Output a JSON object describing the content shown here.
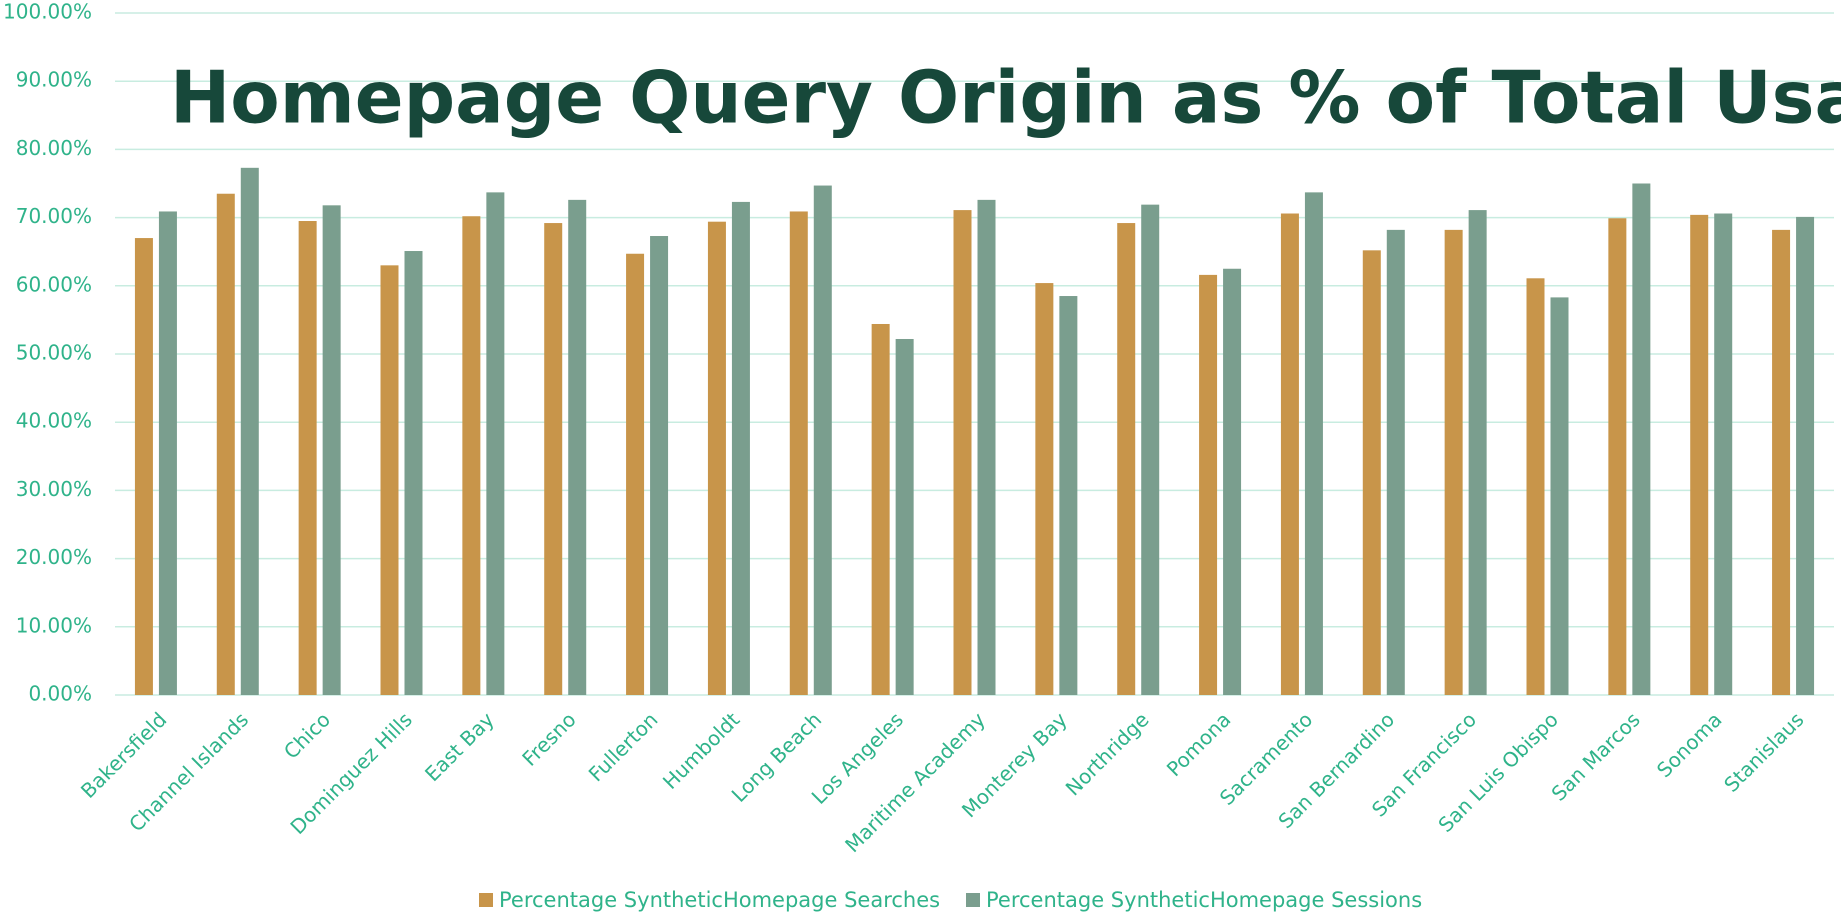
{
  "chart_data": {
    "type": "bar",
    "title": "Homepage Query Origin as % of Total Usage",
    "categories": [
      "Bakersfield",
      "Channel Islands",
      "Chico",
      "Dominguez Hills",
      "East Bay",
      "Fresno",
      "Fullerton",
      "Humboldt",
      "Long Beach",
      "Los Angeles",
      "Maritime Academy",
      "Monterey Bay",
      "Northridge",
      "Pomona",
      "Sacramento",
      "San Bernardino",
      "San Francisco",
      "San Luis Obispo",
      "San Marcos",
      "Sonoma",
      "Stanislaus"
    ],
    "series": [
      {
        "name": "Percentage SyntheticHomepage Searches",
        "color": "#c8954a",
        "values": [
          67.0,
          73.5,
          69.5,
          63.0,
          70.2,
          69.2,
          64.7,
          69.4,
          70.9,
          54.4,
          71.1,
          60.4,
          69.2,
          61.6,
          70.6,
          65.2,
          68.2,
          61.1,
          69.9,
          70.4,
          68.2
        ]
      },
      {
        "name": "Percentage SyntheticHomepage Sessions",
        "color": "#7a9e8e",
        "values": [
          70.9,
          77.3,
          71.8,
          65.1,
          73.7,
          72.6,
          67.3,
          72.3,
          74.7,
          52.2,
          72.6,
          58.5,
          71.9,
          62.5,
          73.7,
          68.2,
          71.1,
          58.3,
          75.0,
          70.6,
          70.1
        ]
      }
    ],
    "ylim": [
      0,
      100
    ],
    "yticks": [
      {
        "value": 0,
        "label": "0.00%"
      },
      {
        "value": 10,
        "label": "10.00%"
      },
      {
        "value": 20,
        "label": "20.00%"
      },
      {
        "value": 30,
        "label": "30.00%"
      },
      {
        "value": 40,
        "label": "40.00%"
      },
      {
        "value": 50,
        "label": "50.00%"
      },
      {
        "value": 60,
        "label": "60.00%"
      },
      {
        "value": 70,
        "label": "70.00%"
      },
      {
        "value": 80,
        "label": "80.00%"
      },
      {
        "value": 90,
        "label": "90.00%"
      },
      {
        "value": 100,
        "label": "100.00%"
      }
    ],
    "grid": true,
    "legend": "bottom"
  }
}
